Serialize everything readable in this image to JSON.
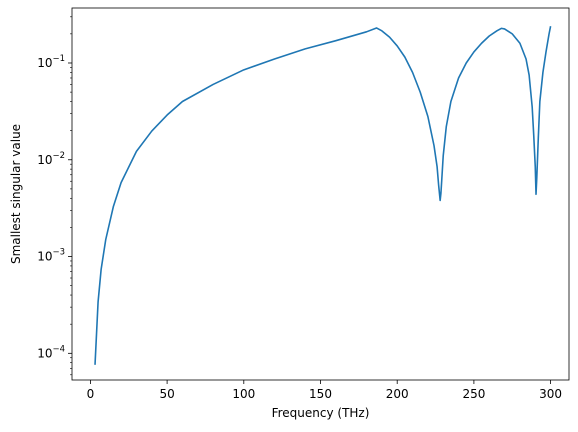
{
  "chart_data": {
    "type": "line",
    "title": "",
    "xlabel": "Frequency (THz)",
    "ylabel": "Smallest singular value",
    "xscale": "linear",
    "yscale": "log",
    "xlim": [
      -12,
      312
    ],
    "ylim": [
      5.3e-05,
      0.37
    ],
    "x_ticks": [
      0,
      50,
      100,
      150,
      200,
      250,
      300
    ],
    "y_ticks": [
      {
        "value": 0.0001,
        "base": "10",
        "exp": "−4"
      },
      {
        "value": 0.001,
        "base": "10",
        "exp": "−3"
      },
      {
        "value": 0.01,
        "base": "10",
        "exp": "−2"
      },
      {
        "value": 0.1,
        "base": "10",
        "exp": "−1"
      }
    ],
    "grid": false,
    "line_color": "#1f77b4",
    "series": [
      {
        "x": [
          3,
          4,
          5,
          7,
          10,
          15,
          20,
          30,
          40,
          50,
          60,
          80,
          100,
          120,
          140,
          160,
          180,
          186.5,
          190,
          195,
          200,
          205,
          210,
          215,
          220,
          224,
          226,
          227,
          228,
          228.5,
          229,
          230,
          232,
          235,
          240,
          245,
          250,
          255,
          260,
          265,
          268,
          270,
          275,
          280,
          284,
          286,
          288,
          289,
          290,
          290.5,
          291,
          292,
          293,
          295,
          297,
          299,
          300
        ],
        "y": [
          7.6e-05,
          0.00016,
          0.00034,
          0.00074,
          0.0015,
          0.0033,
          0.0058,
          0.0122,
          0.0198,
          0.029,
          0.04,
          0.06,
          0.085,
          0.11,
          0.14,
          0.17,
          0.21,
          0.23,
          0.215,
          0.185,
          0.15,
          0.115,
          0.08,
          0.05,
          0.028,
          0.014,
          0.0085,
          0.0055,
          0.0038,
          0.0045,
          0.006,
          0.011,
          0.022,
          0.04,
          0.07,
          0.1,
          0.13,
          0.16,
          0.19,
          0.215,
          0.228,
          0.225,
          0.2,
          0.16,
          0.11,
          0.075,
          0.035,
          0.018,
          0.0085,
          0.0044,
          0.0065,
          0.017,
          0.04,
          0.08,
          0.13,
          0.2,
          0.24
        ]
      }
    ]
  }
}
